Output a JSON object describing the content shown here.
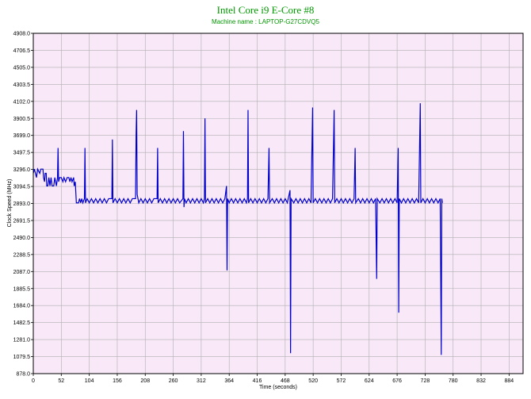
{
  "chart_data": {
    "type": "line",
    "title": "Intel Core i9 E-Core #8",
    "subtitle": "Machine name : LAPTOP-G27CDVQ5",
    "xlabel": "Time (seconds)",
    "ylabel": "Clock Speed (MHz)",
    "xlim": [
      0,
      910
    ],
    "ylim": [
      878.0,
      4908.0
    ],
    "x_ticks": [
      "0",
      "52",
      "104",
      "156",
      "208",
      "260",
      "312",
      "364",
      "416",
      "468",
      "520",
      "572",
      "624",
      "676",
      "728",
      "780",
      "832",
      "884"
    ],
    "y_ticks": [
      "878.0",
      "1079.5",
      "1281.0",
      "1482.5",
      "1684.0",
      "1885.5",
      "2087.0",
      "2288.5",
      "2490.0",
      "2691.5",
      "2893.0",
      "3094.5",
      "3296.0",
      "3497.5",
      "3699.0",
      "3900.5",
      "4102.0",
      "4303.5",
      "4505.0",
      "4706.5",
      "4908.0"
    ],
    "grid": true,
    "colors": {
      "line": "#0000cc",
      "plot_bg": "#f8e8f8",
      "grid": "#b0b0b0",
      "title": "#009900"
    },
    "series": [
      {
        "values": [
          [
            0,
            3250
          ],
          [
            2,
            3300
          ],
          [
            6,
            3200
          ],
          [
            8,
            3300
          ],
          [
            12,
            3250
          ],
          [
            14,
            3300
          ],
          [
            18,
            3300
          ],
          [
            19,
            3200
          ],
          [
            21,
            3150
          ],
          [
            22,
            3250
          ],
          [
            24,
            3250
          ],
          [
            25,
            3100
          ],
          [
            27,
            3100
          ],
          [
            29,
            3200
          ],
          [
            31,
            3100
          ],
          [
            33,
            3200
          ],
          [
            35,
            3100
          ],
          [
            38,
            3100
          ],
          [
            40,
            3200
          ],
          [
            43,
            3100
          ],
          [
            45,
            3200
          ],
          [
            46,
            3550
          ],
          [
            47,
            3150
          ],
          [
            49,
            3200
          ],
          [
            52,
            3200
          ],
          [
            55,
            3150
          ],
          [
            57,
            3200
          ],
          [
            60,
            3150
          ],
          [
            63,
            3200
          ],
          [
            66,
            3200
          ],
          [
            68,
            3150
          ],
          [
            70,
            3200
          ],
          [
            72,
            3150
          ],
          [
            75,
            3200
          ],
          [
            76,
            3100
          ],
          [
            78,
            3150
          ],
          [
            80,
            2900
          ],
          [
            84,
            2900
          ],
          [
            86,
            2950
          ],
          [
            88,
            2900
          ],
          [
            90,
            2950
          ],
          [
            92,
            2900
          ],
          [
            95,
            2950
          ],
          [
            96,
            3550
          ],
          [
            97,
            2900
          ],
          [
            100,
            2950
          ],
          [
            104,
            2900
          ],
          [
            108,
            2950
          ],
          [
            112,
            2900
          ],
          [
            116,
            2950
          ],
          [
            120,
            2900
          ],
          [
            124,
            2950
          ],
          [
            128,
            2900
          ],
          [
            132,
            2950
          ],
          [
            136,
            2900
          ],
          [
            140,
            2950
          ],
          [
            146,
            2950
          ],
          [
            147,
            3650
          ],
          [
            148,
            2900
          ],
          [
            152,
            2950
          ],
          [
            156,
            2900
          ],
          [
            160,
            2950
          ],
          [
            164,
            2900
          ],
          [
            168,
            2950
          ],
          [
            172,
            2900
          ],
          [
            176,
            2950
          ],
          [
            180,
            2900
          ],
          [
            184,
            2950
          ],
          [
            190,
            2950
          ],
          [
            191,
            3700
          ],
          [
            192,
            4000
          ],
          [
            193,
            3000
          ],
          [
            196,
            2900
          ],
          [
            200,
            2950
          ],
          [
            204,
            2900
          ],
          [
            208,
            2950
          ],
          [
            212,
            2900
          ],
          [
            216,
            2950
          ],
          [
            220,
            2900
          ],
          [
            224,
            2950
          ],
          [
            230,
            2950
          ],
          [
            231,
            3550
          ],
          [
            232,
            2900
          ],
          [
            236,
            2950
          ],
          [
            240,
            2900
          ],
          [
            244,
            2950
          ],
          [
            248,
            2900
          ],
          [
            252,
            2950
          ],
          [
            256,
            2900
          ],
          [
            260,
            2950
          ],
          [
            264,
            2900
          ],
          [
            268,
            2950
          ],
          [
            272,
            2900
          ],
          [
            278,
            2950
          ],
          [
            279,
            3750
          ],
          [
            280,
            2850
          ],
          [
            281,
            2950
          ],
          [
            284,
            2900
          ],
          [
            288,
            2950
          ],
          [
            292,
            2900
          ],
          [
            296,
            2950
          ],
          [
            300,
            2900
          ],
          [
            304,
            2950
          ],
          [
            308,
            2900
          ],
          [
            312,
            2950
          ],
          [
            316,
            2900
          ],
          [
            318,
            2950
          ],
          [
            319,
            3900
          ],
          [
            320,
            2900
          ],
          [
            324,
            2950
          ],
          [
            328,
            2900
          ],
          [
            332,
            2950
          ],
          [
            336,
            2900
          ],
          [
            340,
            2950
          ],
          [
            344,
            2900
          ],
          [
            348,
            2950
          ],
          [
            352,
            2900
          ],
          [
            356,
            2950
          ],
          [
            359,
            3100
          ],
          [
            360,
            2100
          ],
          [
            361,
            2950
          ],
          [
            364,
            2900
          ],
          [
            368,
            2950
          ],
          [
            372,
            2900
          ],
          [
            376,
            2950
          ],
          [
            380,
            2900
          ],
          [
            384,
            2950
          ],
          [
            388,
            2900
          ],
          [
            392,
            2950
          ],
          [
            396,
            2900
          ],
          [
            398,
            2950
          ],
          [
            399,
            4000
          ],
          [
            400,
            2900
          ],
          [
            404,
            2950
          ],
          [
            408,
            2900
          ],
          [
            412,
            2950
          ],
          [
            416,
            2900
          ],
          [
            420,
            2950
          ],
          [
            424,
            2900
          ],
          [
            428,
            2950
          ],
          [
            432,
            2900
          ],
          [
            436,
            2950
          ],
          [
            438,
            3550
          ],
          [
            439,
            2900
          ],
          [
            444,
            2950
          ],
          [
            448,
            2900
          ],
          [
            452,
            2950
          ],
          [
            456,
            2900
          ],
          [
            460,
            2950
          ],
          [
            464,
            2900
          ],
          [
            468,
            2950
          ],
          [
            472,
            2900
          ],
          [
            477,
            3050
          ],
          [
            478,
            1120
          ],
          [
            479,
            2950
          ],
          [
            484,
            2900
          ],
          [
            488,
            2950
          ],
          [
            492,
            2900
          ],
          [
            496,
            2950
          ],
          [
            500,
            2900
          ],
          [
            504,
            2950
          ],
          [
            508,
            2900
          ],
          [
            512,
            2950
          ],
          [
            516,
            2900
          ],
          [
            519,
            4030
          ],
          [
            520,
            2900
          ],
          [
            524,
            2950
          ],
          [
            528,
            2900
          ],
          [
            532,
            2950
          ],
          [
            536,
            2900
          ],
          [
            540,
            2950
          ],
          [
            544,
            2900
          ],
          [
            548,
            2950
          ],
          [
            552,
            2900
          ],
          [
            556,
            2950
          ],
          [
            559,
            4000
          ],
          [
            560,
            2900
          ],
          [
            564,
            2950
          ],
          [
            568,
            2900
          ],
          [
            572,
            2950
          ],
          [
            576,
            2900
          ],
          [
            580,
            2950
          ],
          [
            584,
            2900
          ],
          [
            588,
            2950
          ],
          [
            592,
            2900
          ],
          [
            596,
            2950
          ],
          [
            598,
            3550
          ],
          [
            599,
            2900
          ],
          [
            604,
            2950
          ],
          [
            608,
            2900
          ],
          [
            612,
            2950
          ],
          [
            616,
            2900
          ],
          [
            620,
            2950
          ],
          [
            624,
            2900
          ],
          [
            628,
            2950
          ],
          [
            632,
            2900
          ],
          [
            636,
            2950
          ],
          [
            638,
            2000
          ],
          [
            639,
            2950
          ],
          [
            644,
            2900
          ],
          [
            648,
            2950
          ],
          [
            652,
            2900
          ],
          [
            656,
            2950
          ],
          [
            660,
            2900
          ],
          [
            664,
            2950
          ],
          [
            668,
            2900
          ],
          [
            672,
            2950
          ],
          [
            676,
            2900
          ],
          [
            678,
            3550
          ],
          [
            679,
            1600
          ],
          [
            680,
            2950
          ],
          [
            684,
            2900
          ],
          [
            688,
            2950
          ],
          [
            692,
            2900
          ],
          [
            696,
            2950
          ],
          [
            700,
            2900
          ],
          [
            704,
            2950
          ],
          [
            708,
            2900
          ],
          [
            712,
            2950
          ],
          [
            716,
            2900
          ],
          [
            719,
            4080
          ],
          [
            720,
            2900
          ],
          [
            724,
            2950
          ],
          [
            728,
            2900
          ],
          [
            732,
            2950
          ],
          [
            736,
            2900
          ],
          [
            740,
            2950
          ],
          [
            744,
            2900
          ],
          [
            748,
            2950
          ],
          [
            752,
            2900
          ],
          [
            756,
            2950
          ],
          [
            758,
            1100
          ],
          [
            759,
            2950
          ],
          [
            760,
            2900
          ]
        ]
      }
    ]
  }
}
